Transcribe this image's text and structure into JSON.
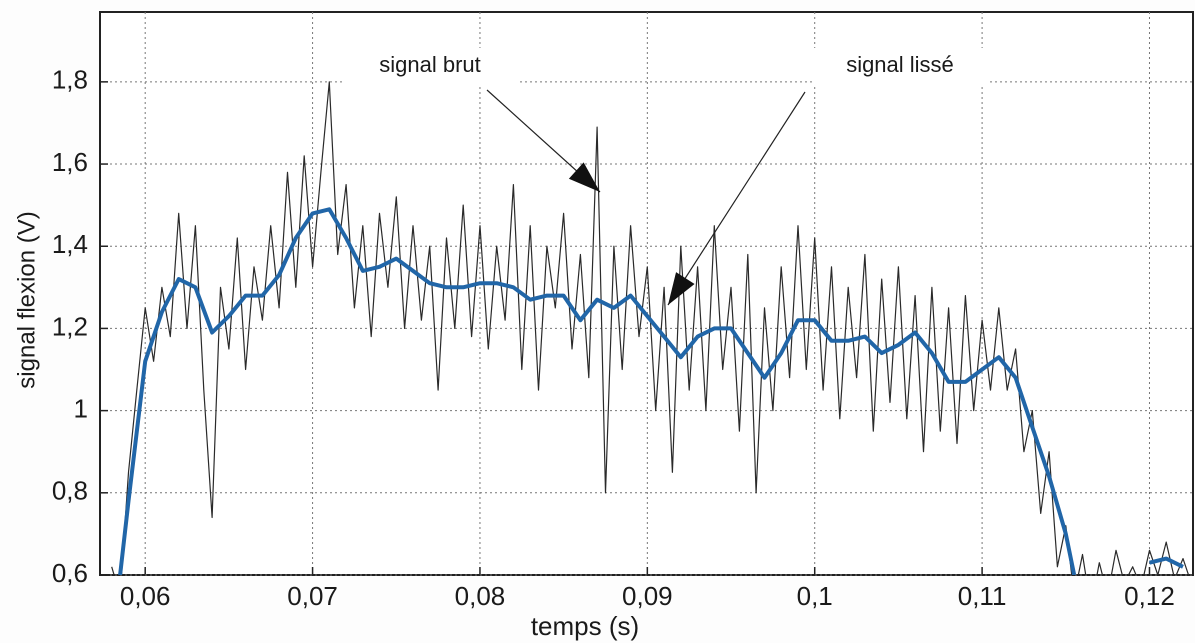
{
  "chart_data": {
    "type": "line",
    "x_label": "temps (s)",
    "y_label": "signal flexion (V)",
    "xlim": [
      0.0573,
      0.1226
    ],
    "ylim": [
      0.6,
      1.97
    ],
    "xticks": [
      {
        "value": 0.06,
        "label": "0,06"
      },
      {
        "value": 0.07,
        "label": "0,07"
      },
      {
        "value": 0.08,
        "label": "0,08"
      },
      {
        "value": 0.09,
        "label": "0,09"
      },
      {
        "value": 0.1,
        "label": "0,1"
      },
      {
        "value": 0.11,
        "label": "0,11"
      },
      {
        "value": 0.12,
        "label": "0,12"
      }
    ],
    "yticks": [
      {
        "value": 0.6,
        "label": "0,6"
      },
      {
        "value": 0.8,
        "label": "0,8"
      },
      1,
      {
        "value": 1.2,
        "label": "1,2"
      },
      {
        "value": 1.4,
        "label": "1,4"
      },
      {
        "value": 1.6,
        "label": "1,6"
      },
      {
        "value": 1.8,
        "label": "1,8"
      }
    ],
    "grid": true,
    "series": [
      {
        "name": "signal brut",
        "color": "#2a2a2a",
        "width": 1.2,
        "x": [
          0.058,
          0.0585,
          0.059,
          0.0595,
          0.06,
          0.0605,
          0.061,
          0.0615,
          0.062,
          0.0625,
          0.063,
          0.0635,
          0.064,
          0.0645,
          0.065,
          0.0655,
          0.066,
          0.0665,
          0.067,
          0.0675,
          0.068,
          0.0685,
          0.069,
          0.0695,
          0.07,
          0.0705,
          0.071,
          0.0715,
          0.072,
          0.0725,
          0.073,
          0.0735,
          0.074,
          0.0745,
          0.075,
          0.0755,
          0.076,
          0.0765,
          0.077,
          0.0775,
          0.078,
          0.0785,
          0.079,
          0.0795,
          0.08,
          0.0805,
          0.081,
          0.0815,
          0.082,
          0.0825,
          0.083,
          0.0835,
          0.084,
          0.0845,
          0.085,
          0.0855,
          0.086,
          0.0865,
          0.087,
          0.0875,
          0.088,
          0.0885,
          0.089,
          0.0895,
          0.09,
          0.0905,
          0.091,
          0.0915,
          0.092,
          0.0925,
          0.093,
          0.0935,
          0.094,
          0.0945,
          0.095,
          0.0955,
          0.096,
          0.0965,
          0.097,
          0.0975,
          0.098,
          0.0985,
          0.099,
          0.0995,
          0.1,
          0.1005,
          0.101,
          0.1015,
          0.102,
          0.1025,
          0.103,
          0.1035,
          0.104,
          0.1045,
          0.105,
          0.1055,
          0.106,
          0.1065,
          0.107,
          0.1075,
          0.108,
          0.1085,
          0.109,
          0.1095,
          0.11,
          0.1105,
          0.111,
          0.1115,
          0.112,
          0.1125,
          0.113,
          0.1135,
          0.114,
          0.1145,
          0.115,
          0.1155,
          0.116,
          0.1165,
          0.117,
          0.1175,
          0.118,
          0.1185,
          0.119,
          0.1195,
          0.12,
          0.1205,
          0.121,
          0.1215,
          0.122,
          0.1225
        ],
        "values": [
          0.62,
          0.55,
          0.85,
          1.05,
          1.25,
          1.12,
          1.3,
          1.18,
          1.48,
          1.2,
          1.45,
          1.05,
          0.74,
          1.3,
          1.15,
          1.42,
          1.1,
          1.35,
          1.22,
          1.45,
          1.25,
          1.58,
          1.3,
          1.62,
          1.35,
          1.58,
          1.8,
          1.38,
          1.55,
          1.25,
          1.45,
          1.18,
          1.48,
          1.3,
          1.52,
          1.2,
          1.45,
          1.22,
          1.4,
          1.05,
          1.42,
          1.2,
          1.5,
          1.18,
          1.45,
          1.15,
          1.4,
          1.22,
          1.55,
          1.1,
          1.45,
          1.05,
          1.4,
          1.25,
          1.48,
          1.15,
          1.38,
          1.08,
          1.69,
          0.8,
          1.4,
          1.1,
          1.45,
          1.18,
          1.35,
          1.0,
          1.3,
          0.85,
          1.4,
          1.05,
          1.35,
          1.0,
          1.45,
          1.1,
          1.3,
          0.95,
          1.38,
          0.8,
          1.25,
          1.0,
          1.35,
          1.08,
          1.45,
          1.1,
          1.42,
          1.05,
          1.35,
          0.98,
          1.3,
          1.08,
          1.38,
          0.95,
          1.32,
          1.02,
          1.35,
          0.98,
          1.28,
          0.9,
          1.3,
          0.95,
          1.25,
          0.92,
          1.28,
          1.0,
          1.22,
          1.05,
          1.25,
          1.05,
          1.15,
          0.9,
          1.0,
          0.75,
          0.9,
          0.62,
          0.72,
          0.55,
          0.65,
          0.52,
          0.63,
          0.55,
          0.66,
          0.58,
          0.62,
          0.57,
          0.66,
          0.6,
          0.68,
          0.59,
          0.64,
          0.58
        ]
      },
      {
        "name": "signal lissé",
        "color": "#2166a8",
        "width": 4,
        "x": [
          0.0585,
          0.059,
          0.06,
          0.061,
          0.062,
          0.063,
          0.064,
          0.065,
          0.066,
          0.067,
          0.068,
          0.069,
          0.07,
          0.071,
          0.072,
          0.073,
          0.074,
          0.075,
          0.076,
          0.077,
          0.078,
          0.079,
          0.08,
          0.081,
          0.082,
          0.083,
          0.084,
          0.085,
          0.086,
          0.087,
          0.088,
          0.089,
          0.09,
          0.091,
          0.092,
          0.093,
          0.094,
          0.095,
          0.096,
          0.097,
          0.098,
          0.099,
          0.1,
          0.101,
          0.102,
          0.103,
          0.104,
          0.105,
          0.106,
          0.107,
          0.108,
          0.109,
          0.11,
          0.111,
          0.112,
          0.113,
          0.114,
          0.115,
          0.1155,
          0.117,
          0.12,
          0.121,
          0.122
        ],
        "values": [
          0.6,
          0.78,
          1.12,
          1.24,
          1.32,
          1.3,
          1.19,
          1.23,
          1.28,
          1.28,
          1.33,
          1.42,
          1.48,
          1.49,
          1.42,
          1.34,
          1.35,
          1.37,
          1.34,
          1.31,
          1.3,
          1.3,
          1.31,
          1.31,
          1.3,
          1.27,
          1.28,
          1.28,
          1.22,
          1.27,
          1.25,
          1.28,
          1.23,
          1.18,
          1.13,
          1.18,
          1.2,
          1.2,
          1.14,
          1.08,
          1.14,
          1.22,
          1.22,
          1.17,
          1.17,
          1.18,
          1.14,
          1.16,
          1.19,
          1.14,
          1.07,
          1.07,
          1.1,
          1.13,
          1.08,
          0.96,
          0.84,
          0.7,
          0.6,
          null,
          0.63,
          0.64,
          0.62
        ]
      }
    ],
    "annotations": [
      {
        "text_of": 0
      },
      {
        "text_of": 1
      }
    ]
  }
}
